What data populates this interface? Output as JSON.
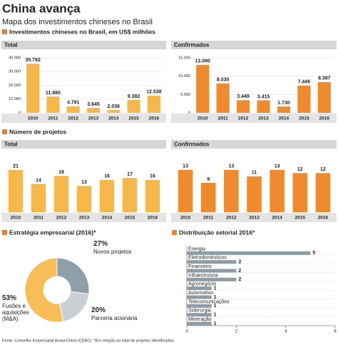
{
  "header": {
    "title": "China avança",
    "subtitle": "Mapa dos investimentos chineses no Brasil"
  },
  "sections": [
    "Investimentos chineses no Brasil, em US$ milhões",
    "Número de projetos"
  ],
  "chart_data": [
    {
      "type": "bar",
      "title": "Total",
      "categories": [
        "2010",
        "2011",
        "2012",
        "2013",
        "2014",
        "2015",
        "2016"
      ],
      "values": [
        35792,
        11880,
        4791,
        3645,
        2036,
        9382,
        12538
      ],
      "value_labels": [
        "35.792",
        "11.880",
        "4.791",
        "3.645",
        "2.036",
        "9.382",
        "12.538"
      ],
      "color": "#f7b84b",
      "ylim": [
        0,
        40000
      ],
      "yticks": [
        0,
        {
          "value": 10000,
          "label": "10.000"
        },
        {
          "value": 20000,
          "label": "20.000"
        },
        {
          "value": 30000,
          "label": "30.000"
        },
        {
          "value": 40000,
          "label": "40.000"
        }
      ],
      "grid": true
    },
    {
      "type": "bar",
      "title": "Confirmados",
      "categories": [
        "2010",
        "2011",
        "2012",
        "2013",
        "2014",
        "2015",
        "2016"
      ],
      "values": [
        13090,
        8030,
        3449,
        3415,
        1730,
        7446,
        8397
      ],
      "value_labels": [
        "13.090",
        "8.030",
        "3.449",
        "3.415",
        "1.730",
        "7.446",
        "8.397"
      ],
      "color": "#ef8a2e",
      "ylim": [
        0,
        15000
      ],
      "yticks": [
        0,
        {
          "value": 5000,
          "label": "5.000"
        },
        {
          "value": 10000,
          "label": "10.000"
        },
        {
          "value": 15000,
          "label": "15.000"
        }
      ],
      "grid": true
    },
    {
      "type": "bar",
      "title": "Total",
      "categories": [
        "2010",
        "2011",
        "2012",
        "2013",
        "2014",
        "2015",
        "2016"
      ],
      "values": [
        21,
        14,
        18,
        13,
        16,
        17,
        16
      ],
      "color": "#f7b84b"
    },
    {
      "type": "bar",
      "title": "Confirmados",
      "categories": [
        "2010",
        "2011",
        "2012",
        "2013",
        "2014",
        "2015",
        "2016"
      ],
      "values": [
        13,
        9,
        13,
        11,
        13,
        12,
        12
      ],
      "color": "#ef8a2e"
    },
    {
      "type": "pie",
      "title": "Estratégia empresarial (2016)*",
      "categories": [
        "Novos projetos",
        "Parceria acionária",
        "Fusões e aquisições (M&A)"
      ],
      "values": [
        27,
        20,
        53
      ],
      "value_labels": [
        "27%",
        "20%",
        "53%"
      ],
      "colors": [
        "#8d9fa8",
        "#c9d0d3",
        "#f7be58"
      ]
    },
    {
      "type": "barh",
      "title": "Distribuição setorial 2016*",
      "categories": [
        "Energia",
        "Eletrodomésticos",
        "Financeiro",
        "Infraestrutura",
        "Agronegócio",
        "Automotivo",
        "Telecomunicações",
        "Siderurgia",
        "Mineração"
      ],
      "values": [
        5,
        2,
        2,
        2,
        1,
        1,
        1,
        1,
        1
      ],
      "color": "#8d9ca5",
      "xlim": [
        0,
        6
      ],
      "xticks": [
        0,
        2,
        4,
        6
      ]
    }
  ],
  "footer": "Fonte: Conselho Empresarial Brasil-China (CEBC). *Em relação ao total de projetos identificados"
}
